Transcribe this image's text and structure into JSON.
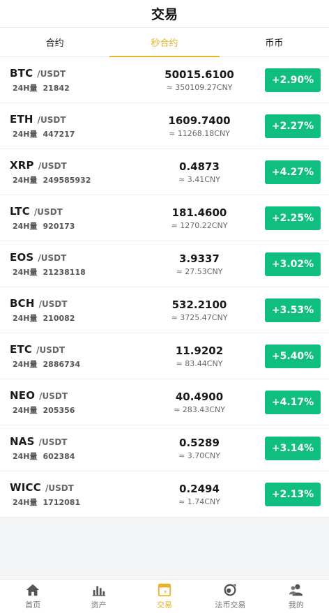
{
  "header": {
    "title": "交易"
  },
  "tabs": [
    {
      "label": "合约",
      "active": false
    },
    {
      "label": "秒合约",
      "active": true
    },
    {
      "label": "币币",
      "active": false
    }
  ],
  "market": [
    {
      "symbol": "BTC",
      "quote": "/USDT",
      "vol_label": "24H量",
      "volume": "21842",
      "price": "50015.6100",
      "cny": "≈ 350109.27CNY",
      "change": "+2.90%"
    },
    {
      "symbol": "ETH",
      "quote": "/USDT",
      "vol_label": "24H量",
      "volume": "447217",
      "price": "1609.7400",
      "cny": "≈ 11268.18CNY",
      "change": "+2.27%"
    },
    {
      "symbol": "XRP",
      "quote": "/USDT",
      "vol_label": "24H量",
      "volume": "249585932",
      "price": "0.4873",
      "cny": "≈ 3.41CNY",
      "change": "+4.27%"
    },
    {
      "symbol": "LTC",
      "quote": "/USDT",
      "vol_label": "24H量",
      "volume": "920173",
      "price": "181.4600",
      "cny": "≈ 1270.22CNY",
      "change": "+2.25%"
    },
    {
      "symbol": "EOS",
      "quote": "/USDT",
      "vol_label": "24H量",
      "volume": "21238118",
      "price": "3.9337",
      "cny": "≈ 27.53CNY",
      "change": "+3.02%"
    },
    {
      "symbol": "BCH",
      "quote": "/USDT",
      "vol_label": "24H量",
      "volume": "210082",
      "price": "532.2100",
      "cny": "≈ 3725.47CNY",
      "change": "+3.53%"
    },
    {
      "symbol": "ETC",
      "quote": "/USDT",
      "vol_label": "24H量",
      "volume": "2886734",
      "price": "11.9202",
      "cny": "≈ 83.44CNY",
      "change": "+5.40%"
    },
    {
      "symbol": "NEO",
      "quote": "/USDT",
      "vol_label": "24H量",
      "volume": "205356",
      "price": "40.4900",
      "cny": "≈ 283.43CNY",
      "change": "+4.17%"
    },
    {
      "symbol": "NAS",
      "quote": "/USDT",
      "vol_label": "24H量",
      "volume": "602384",
      "price": "0.5289",
      "cny": "≈ 3.70CNY",
      "change": "+3.14%"
    },
    {
      "symbol": "WICC",
      "quote": "/USDT",
      "vol_label": "24H量",
      "volume": "1712081",
      "price": "0.2494",
      "cny": "≈ 1.74CNY",
      "change": "+2.13%"
    }
  ],
  "nav": [
    {
      "label": "首页",
      "icon": "home-icon",
      "active": false
    },
    {
      "label": "资产",
      "icon": "assets-chart-icon",
      "active": false
    },
    {
      "label": "交易",
      "icon": "trade-icon",
      "active": true
    },
    {
      "label": "法币交易",
      "icon": "fiat-exchange-icon",
      "active": false
    },
    {
      "label": "我的",
      "icon": "user-icon",
      "active": false
    }
  ],
  "colors": {
    "accent": "#e8b225",
    "up": "#10bf7f"
  }
}
